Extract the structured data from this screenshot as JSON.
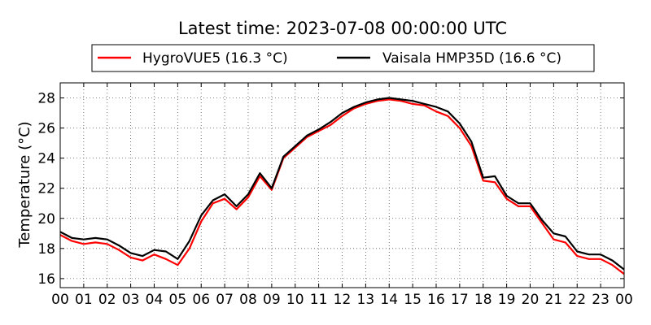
{
  "chart_data": {
    "type": "line",
    "title": "Latest time: 2023-07-08 00:00:00 UTC",
    "xlabel": "",
    "ylabel": "Temperature (°C)",
    "x_unit": "hour (UTC)",
    "xlim": [
      0,
      24
    ],
    "ylim": [
      15.4,
      29
    ],
    "x_ticks": [
      "00",
      "01",
      "02",
      "03",
      "04",
      "05",
      "06",
      "07",
      "08",
      "09",
      "10",
      "11",
      "12",
      "13",
      "14",
      "15",
      "16",
      "17",
      "18",
      "19",
      "20",
      "21",
      "22",
      "23",
      "00"
    ],
    "y_ticks": [
      16,
      18,
      20,
      22,
      24,
      26,
      28
    ],
    "grid": true,
    "legend_position": "top-center",
    "x": [
      0,
      0.5,
      1,
      1.5,
      2,
      2.5,
      3,
      3.5,
      4,
      4.5,
      5,
      5.5,
      6,
      6.5,
      7,
      7.5,
      8,
      8.5,
      9,
      9.5,
      10,
      10.5,
      11,
      11.5,
      12,
      12.5,
      13,
      13.5,
      14,
      14.5,
      15,
      15.5,
      16,
      16.5,
      17,
      17.5,
      18,
      18.5,
      19,
      19.5,
      20,
      20.5,
      21,
      21.5,
      22,
      22.5,
      23,
      23.5,
      24
    ],
    "series": [
      {
        "name": "HygroVUE5 (16.3 °C)",
        "color": "#ff0000",
        "values": [
          18.9,
          18.5,
          18.3,
          18.4,
          18.3,
          17.9,
          17.4,
          17.2,
          17.6,
          17.3,
          16.9,
          18.0,
          19.8,
          21.0,
          21.3,
          20.6,
          21.4,
          22.8,
          21.9,
          24.0,
          24.7,
          25.4,
          25.8,
          26.2,
          26.8,
          27.3,
          27.6,
          27.8,
          27.9,
          27.8,
          27.6,
          27.5,
          27.1,
          26.8,
          26.0,
          24.8,
          22.5,
          22.4,
          21.3,
          20.8,
          20.8,
          19.7,
          18.6,
          18.4,
          17.5,
          17.3,
          17.3,
          16.9,
          16.3
        ]
      },
      {
        "name": "Vaisala HMP35D (16.6 °C)",
        "color": "#000000",
        "values": [
          19.1,
          18.7,
          18.6,
          18.7,
          18.6,
          18.2,
          17.7,
          17.5,
          17.9,
          17.8,
          17.3,
          18.5,
          20.2,
          21.2,
          21.6,
          20.8,
          21.6,
          23.0,
          22.0,
          24.1,
          24.8,
          25.5,
          25.9,
          26.4,
          27.0,
          27.4,
          27.7,
          27.9,
          28.0,
          27.9,
          27.8,
          27.6,
          27.4,
          27.1,
          26.3,
          25.1,
          22.7,
          22.8,
          21.5,
          21.0,
          21.0,
          19.9,
          19.0,
          18.8,
          17.8,
          17.6,
          17.6,
          17.2,
          16.6
        ]
      }
    ]
  }
}
